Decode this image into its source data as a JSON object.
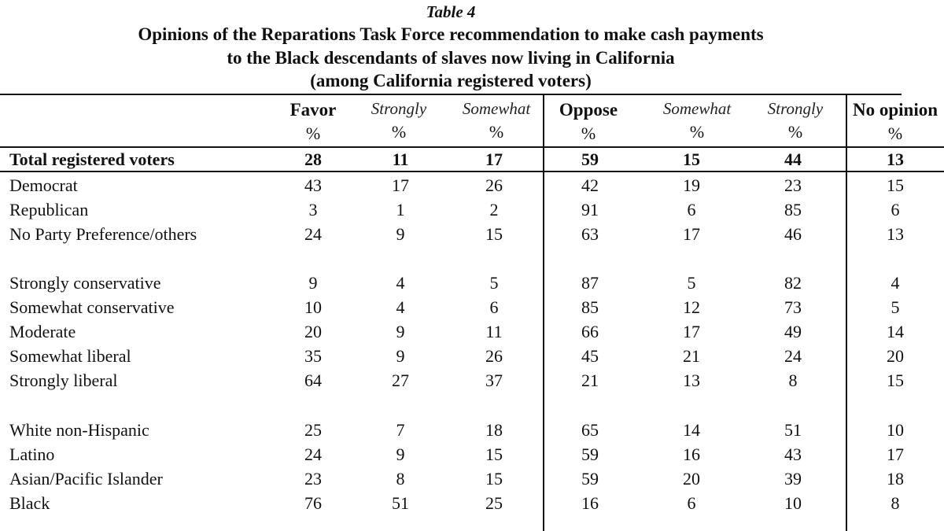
{
  "caption": {
    "label": "Table 4",
    "line1": "Opinions of the Reparations Task Force recommendation to make cash payments",
    "line2": "to the Black descendants of slaves now living in California",
    "line3": "(among California registered voters)"
  },
  "columns": [
    {
      "title": "Favor",
      "unit": "%",
      "style": "bold"
    },
    {
      "title": "Strongly",
      "unit": "%",
      "style": "italic"
    },
    {
      "title": "Somewhat",
      "unit": "%",
      "style": "italic"
    },
    {
      "title": "Oppose",
      "unit": "%",
      "style": "bold"
    },
    {
      "title": "Somewhat",
      "unit": "%",
      "style": "italic"
    },
    {
      "title": "Strongly",
      "unit": "%",
      "style": "italic"
    },
    {
      "title": "No opinion",
      "unit": "%",
      "style": "bold"
    }
  ],
  "total_row": {
    "label": "Total registered voters",
    "values": [
      "28",
      "11",
      "17",
      "59",
      "15",
      "44",
      "13"
    ]
  },
  "groups": [
    [
      {
        "label": "Democrat",
        "values": [
          "43",
          "17",
          "26",
          "42",
          "19",
          "23",
          "15"
        ]
      },
      {
        "label": "Republican",
        "values": [
          "3",
          "1",
          "2",
          "91",
          "6",
          "85",
          "6"
        ]
      },
      {
        "label": "No Party Preference/others",
        "values": [
          "24",
          "9",
          "15",
          "63",
          "17",
          "46",
          "13"
        ]
      }
    ],
    [
      {
        "label": "Strongly conservative",
        "values": [
          "9",
          "4",
          "5",
          "87",
          "5",
          "82",
          "4"
        ]
      },
      {
        "label": "Somewhat conservative",
        "values": [
          "10",
          "4",
          "6",
          "85",
          "12",
          "73",
          "5"
        ]
      },
      {
        "label": "Moderate",
        "values": [
          "20",
          "9",
          "11",
          "66",
          "17",
          "49",
          "14"
        ]
      },
      {
        "label": "Somewhat liberal",
        "values": [
          "35",
          "9",
          "26",
          "45",
          "21",
          "24",
          "20"
        ]
      },
      {
        "label": "Strongly liberal",
        "values": [
          "64",
          "27",
          "37",
          "21",
          "13",
          "8",
          "15"
        ]
      }
    ],
    [
      {
        "label": "White non-Hispanic",
        "values": [
          "25",
          "7",
          "18",
          "65",
          "14",
          "51",
          "10"
        ]
      },
      {
        "label": "Latino",
        "values": [
          "24",
          "9",
          "15",
          "59",
          "16",
          "43",
          "17"
        ]
      },
      {
        "label": "Asian/Pacific Islander",
        "values": [
          "23",
          "8",
          "15",
          "59",
          "20",
          "39",
          "18"
        ]
      },
      {
        "label": "Black",
        "values": [
          "76",
          "51",
          "25",
          "16",
          "6",
          "10",
          "8"
        ]
      }
    ]
  ]
}
